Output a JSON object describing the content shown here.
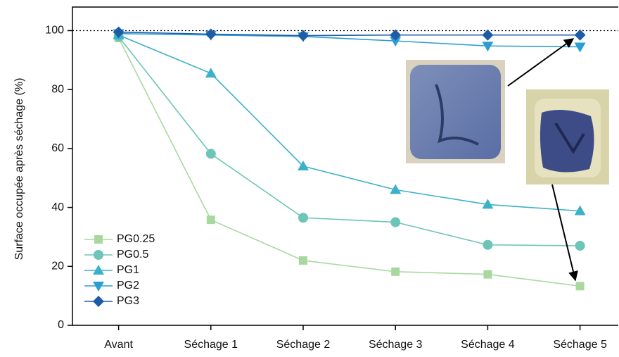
{
  "chart_data": {
    "type": "line",
    "y_label": "Surface occupée après séchage (%)",
    "categories": [
      "Avant",
      "Séchage 1",
      "Séchage 2",
      "Séchage 3",
      "Séchage 4",
      "Séchage 5"
    ],
    "series": [
      {
        "name": "PG0.25",
        "color": "#a9d89f",
        "marker": "square",
        "values": [
          97.5,
          35.8,
          22,
          18.2,
          17.3,
          13.3
        ]
      },
      {
        "name": "PG0.5",
        "color": "#6cc5b6",
        "marker": "circle",
        "values": [
          98,
          58.2,
          36.5,
          35,
          27.3,
          27
        ]
      },
      {
        "name": "PG1",
        "color": "#3bb1c9",
        "marker": "triangle-up",
        "values": [
          98.5,
          85.5,
          54,
          46,
          41,
          38.8
        ]
      },
      {
        "name": "PG2",
        "color": "#2a9ed3",
        "marker": "triangle-down",
        "values": [
          99,
          98.5,
          98,
          96.5,
          94.8,
          94.5
        ]
      },
      {
        "name": "PG3",
        "color": "#1f5ca8",
        "marker": "diamond",
        "values": [
          99.5,
          98.8,
          98.3,
          98.5,
          98.5,
          98.5
        ]
      }
    ],
    "ylim": [
      0,
      108
    ],
    "yticks": [
      0,
      20,
      40,
      60,
      80,
      100
    ],
    "reference_line": 100,
    "legend": "lower-left"
  }
}
